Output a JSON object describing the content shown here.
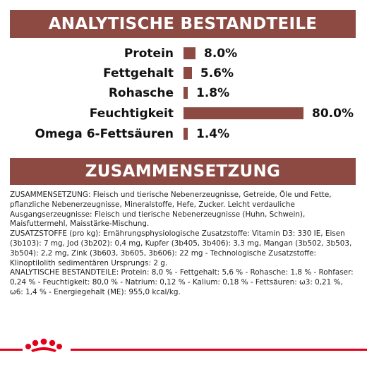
{
  "section1": {
    "title": "ANALYTISCHE BESTANDTEILE"
  },
  "nutrients": [
    {
      "label": "Protein",
      "value": "8.0%",
      "percent": 8.0
    },
    {
      "label": "Fettgehalt",
      "value": "5.6%",
      "percent": 5.6
    },
    {
      "label": "Rohasche",
      "value": "1.8%",
      "percent": 1.8
    },
    {
      "label": "Feuchtigkeit",
      "value": "80.0%",
      "percent": 80.0
    },
    {
      "label": "Omega 6-Fettsäuren",
      "value": "1.4%",
      "percent": 1.4
    }
  ],
  "section2": {
    "title": "ZUSAMMENSETZUNG"
  },
  "composition": {
    "paragraph1": "ZUSAMMENSETZUNG: Fleisch und tierische Nebenerzeugnisse, Getreide, Öle und Fette, pflanzliche Nebenerzeugnisse, Mineralstoffe, Hefe, Zucker. Leicht verdauliche Ausgangserzeugnisse: Fleisch und tierische Nebenerzeugnisse (Huhn, Schwein), Maisfuttermehl, Maisstärke-Mischung.",
    "paragraph2": "ZUSATZSTOFFE (pro kg): Ernährungsphysiologische Zusatzstoffe: Vitamin D3: 330 IE, Eisen (3b103): 7 mg, Jod (3b202): 0,4 mg, Kupfer (3b405, 3b406): 3,3 mg, Mangan (3b502, 3b503, 3b504): 2,2 mg, Zink (3b603, 3b605, 3b606): 22 mg - Technologische Zusatzstoffe: Klinoptilolith sedimentären Ursprungs: 2 g.",
    "paragraph3": "ANALYTISCHE BESTANDTEILE: Protein: 8,0 % - Fettgehalt: 5,6 % - Rohasche: 1,8 % - Rohfaser: 0,24 % - Feuchtigkeit: 80,0 % - Natrium: 0,12 % - Kalium: 0,18 % - Fettsäuren: ω3: 0,21 %, ω6: 1,4 % - Energiegehalt (ME): 955,0 kcal/kg."
  },
  "colors": {
    "accent": "#8c4a43",
    "footer_line": "#e2001a"
  },
  "icons": {
    "logo": "crown-logo-icon"
  }
}
